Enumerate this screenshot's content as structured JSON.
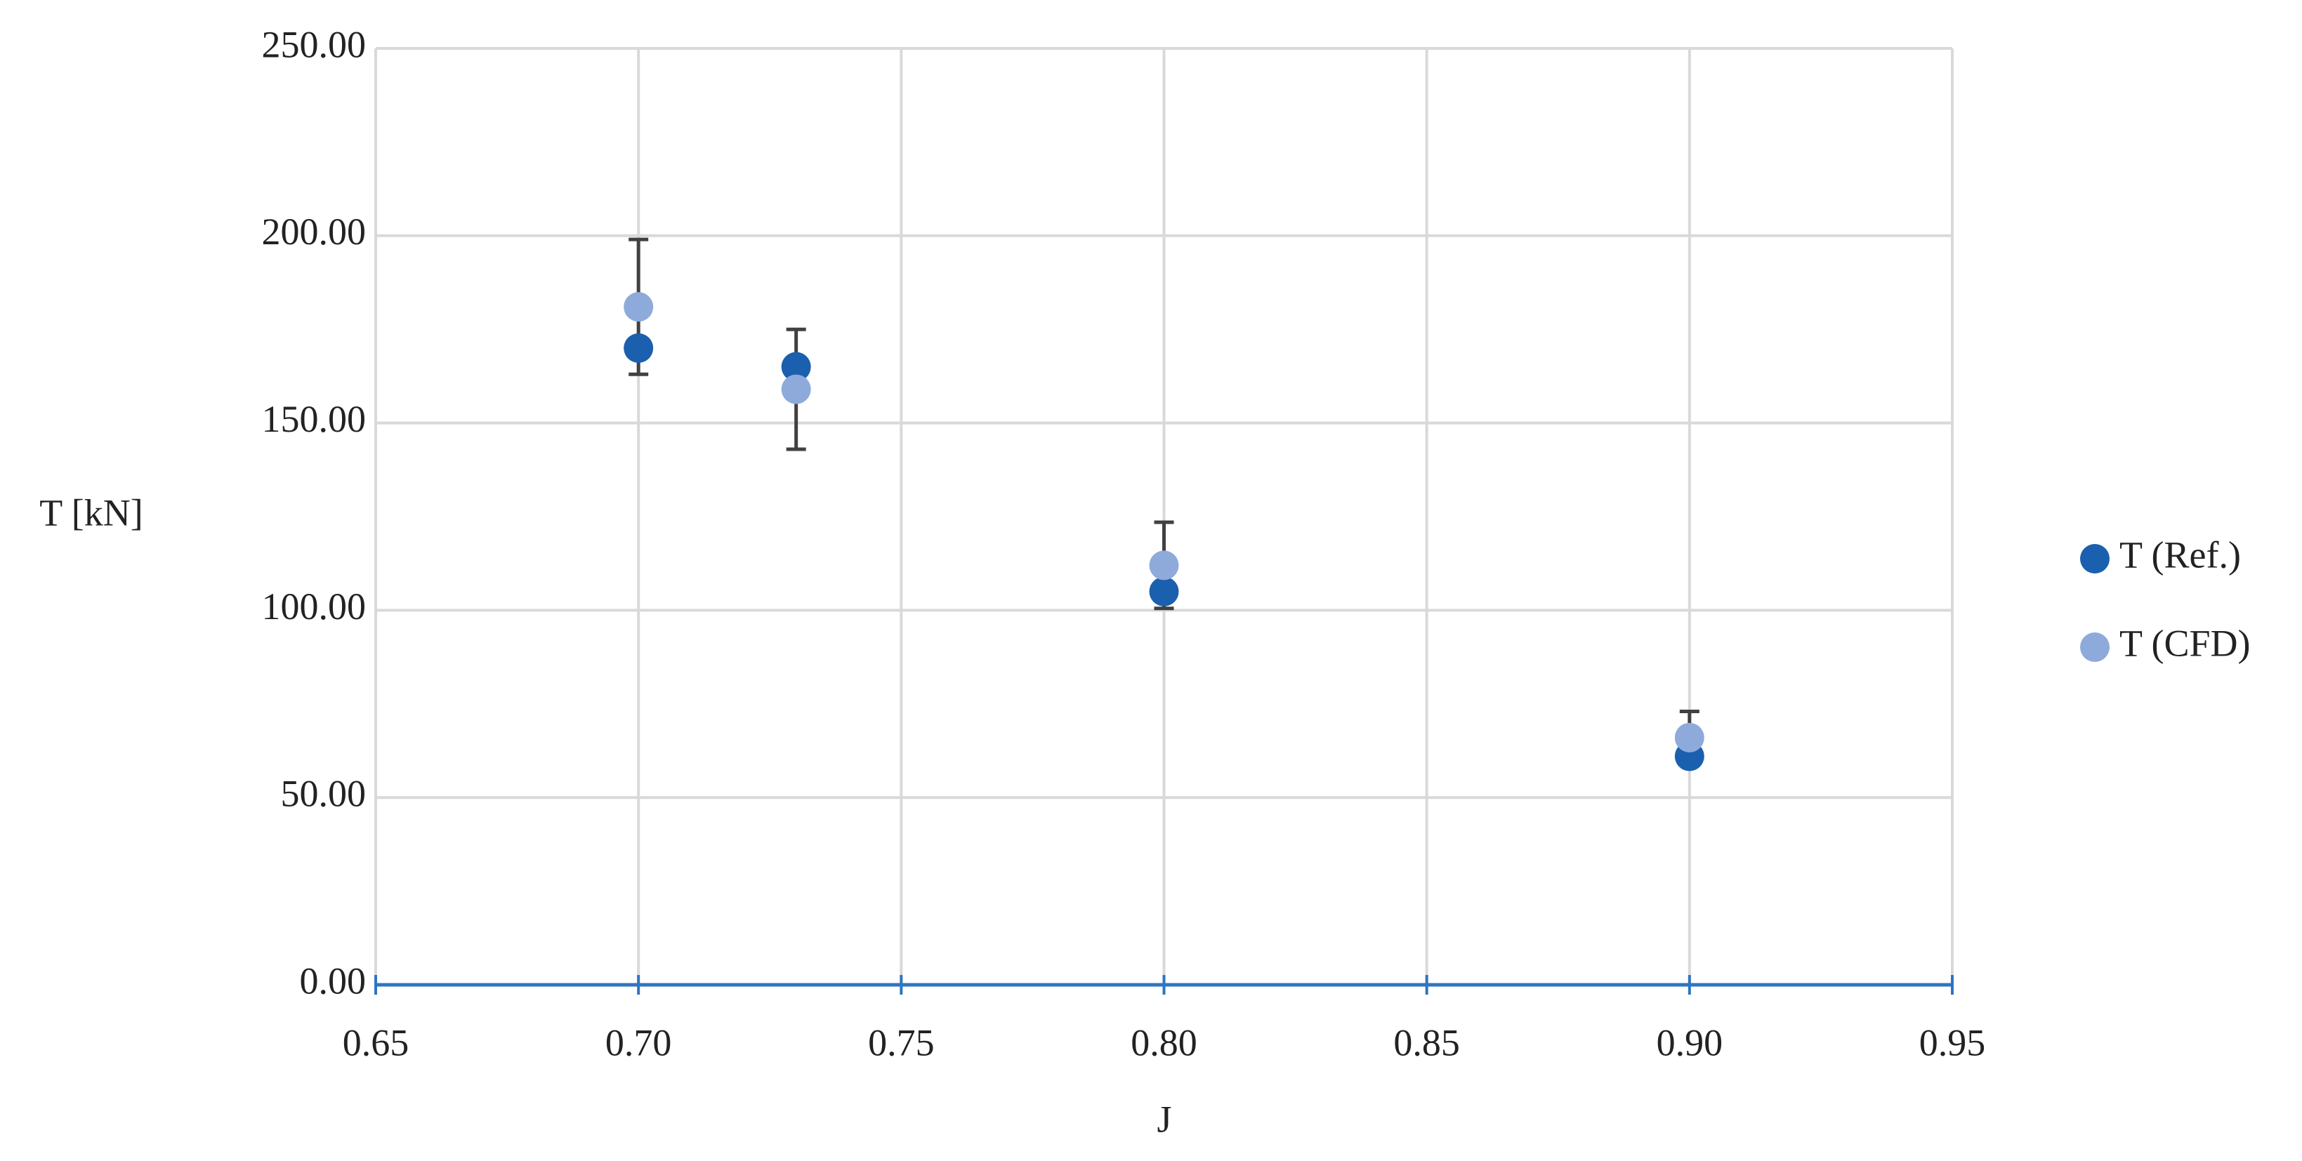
{
  "chart_data": {
    "type": "scatter",
    "x_label": "J",
    "y_label": "T [kN]",
    "series": [
      {
        "name": "T (Ref.)",
        "color": "#1b5faf",
        "x": [
          0.7,
          0.73,
          0.8,
          0.9
        ],
        "values": [
          170,
          165,
          105,
          61
        ]
      },
      {
        "name": "T (CFD)",
        "color": "#8eaadb",
        "x": [
          0.7,
          0.73,
          0.8,
          0.9
        ],
        "values": [
          181,
          159,
          112,
          66
        ],
        "errors": [
          18,
          16,
          11.5,
          7
        ]
      }
    ],
    "xlim": [
      0.65,
      0.95
    ],
    "xticks": [
      0.65,
      {
        "value": 0.7,
        "label": "0.70"
      },
      0.75,
      {
        "value": 0.8,
        "label": "0.80"
      },
      0.85,
      {
        "value": 0.9,
        "label": "0.90"
      },
      0.95
    ],
    "ylim": [
      0,
      250
    ],
    "yticks": [
      {
        "value": 0,
        "label": "0.00"
      },
      {
        "value": 50,
        "label": "50.00"
      },
      {
        "value": 100,
        "label": "100.00"
      },
      {
        "value": 150,
        "label": "150.00"
      },
      {
        "value": 200,
        "label": "200.00"
      },
      {
        "value": 250,
        "label": "250.00"
      }
    ],
    "grid": true,
    "legend": "right"
  }
}
